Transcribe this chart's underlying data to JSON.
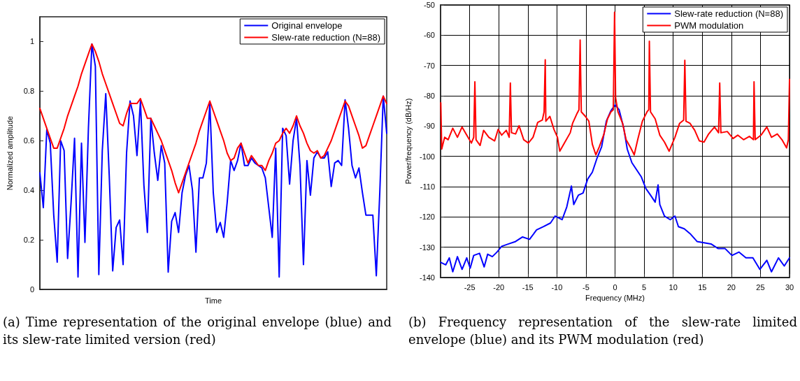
{
  "chart_data": [
    {
      "type": "line",
      "xlabel": "Time",
      "ylabel": "Normalized amplitude",
      "categories": [
        null,
        null,
        null,
        null,
        null,
        null,
        null,
        null,
        null,
        null,
        null,
        null,
        null,
        null,
        null,
        null,
        null,
        null,
        null,
        null,
        null,
        null,
        null,
        null,
        null,
        null,
        null,
        null,
        null,
        null,
        null,
        null,
        null,
        null,
        null,
        null,
        null,
        null,
        null,
        null,
        null,
        null,
        null,
        null,
        null,
        null,
        null,
        null,
        null,
        null,
        null,
        null,
        null,
        null,
        null,
        null,
        null,
        null,
        null,
        null,
        null,
        null,
        null,
        null,
        null,
        null,
        null,
        null,
        null,
        null,
        null,
        null,
        null,
        null,
        null,
        null,
        null,
        null,
        null,
        null,
        null,
        null,
        null,
        null,
        null,
        null,
        null,
        null,
        null,
        null,
        null,
        null,
        null,
        null,
        null,
        null,
        null,
        null,
        null,
        null,
        null
      ],
      "ylim": [
        0,
        1.1
      ],
      "yticks": [
        0,
        0.2,
        0.4,
        0.6,
        0.8,
        1
      ],
      "tick_labels": "y",
      "grid": false,
      "legend": "top right",
      "marker": "none",
      "line_style": "solid",
      "annotations": [
        "(a) Time representation of the original envelope (blue) and its slew-rate limited version (red)"
      ],
      "series": [
        {
          "name": "Original envelope",
          "color": "#0000ff",
          "values": [
            0.47,
            0.33,
            0.645,
            0.59,
            0.3,
            0.11,
            0.6,
            0.56,
            0.125,
            0.35,
            0.61,
            0.05,
            0.59,
            0.19,
            0.65,
            0.99,
            0.9,
            0.06,
            0.56,
            0.79,
            0.46,
            0.075,
            0.25,
            0.28,
            0.1,
            0.55,
            0.76,
            0.7,
            0.54,
            0.76,
            0.42,
            0.23,
            0.69,
            0.55,
            0.44,
            0.58,
            0.51,
            0.07,
            0.275,
            0.31,
            0.23,
            0.39,
            0.46,
            0.5,
            0.4,
            0.15,
            0.45,
            0.45,
            0.51,
            0.75,
            0.39,
            0.23,
            0.27,
            0.21,
            0.35,
            0.52,
            0.48,
            0.52,
            0.59,
            0.5,
            0.5,
            0.53,
            0.51,
            0.5,
            0.49,
            0.45,
            0.33,
            0.21,
            0.57,
            0.05,
            0.65,
            0.62,
            0.425,
            0.6,
            0.69,
            0.5,
            0.1,
            0.52,
            0.38,
            0.53,
            0.555,
            0.53,
            0.53,
            0.555,
            0.415,
            0.51,
            0.52,
            0.5,
            0.765,
            0.65,
            0.5,
            0.45,
            0.49,
            0.39,
            0.3,
            0.3,
            0.3,
            0.055,
            0.39,
            0.78,
            0.63
          ]
        },
        {
          "name": "Slew-rate reduction (N=88)",
          "color": "#ff0000",
          "values": [
            0.73,
            0.69,
            0.65,
            0.61,
            0.57,
            0.57,
            0.61,
            0.65,
            0.7,
            0.74,
            0.78,
            0.82,
            0.87,
            0.91,
            0.95,
            0.99,
            0.96,
            0.92,
            0.87,
            0.83,
            0.79,
            0.75,
            0.71,
            0.67,
            0.66,
            0.71,
            0.75,
            0.75,
            0.75,
            0.77,
            0.73,
            0.69,
            0.69,
            0.66,
            0.63,
            0.6,
            0.56,
            0.52,
            0.48,
            0.43,
            0.39,
            0.43,
            0.47,
            0.51,
            0.55,
            0.59,
            0.64,
            0.68,
            0.72,
            0.76,
            0.72,
            0.68,
            0.64,
            0.6,
            0.55,
            0.52,
            0.53,
            0.57,
            0.59,
            0.55,
            0.51,
            0.54,
            0.52,
            0.5,
            0.5,
            0.48,
            0.52,
            0.55,
            0.59,
            0.6,
            0.63,
            0.65,
            0.63,
            0.66,
            0.7,
            0.66,
            0.63,
            0.59,
            0.56,
            0.55,
            0.56,
            0.53,
            0.54,
            0.57,
            0.6,
            0.64,
            0.68,
            0.72,
            0.76,
            0.74,
            0.7,
            0.66,
            0.62,
            0.57,
            0.58,
            0.62,
            0.66,
            0.7,
            0.74,
            0.78,
            0.75
          ]
        }
      ]
    },
    {
      "type": "line",
      "xlabel": "Frequency (MHz)",
      "ylabel": "Power/frequency (dB/Hz)",
      "xlim": [
        -30,
        30
      ],
      "xticks": [
        -25,
        -20,
        -15,
        -10,
        -5,
        0,
        5,
        10,
        15,
        20,
        25,
        30
      ],
      "ylim": [
        -140,
        -50
      ],
      "yticks": [
        -140,
        -130,
        -120,
        -110,
        -100,
        -90,
        -80,
        -70,
        -60,
        -50
      ],
      "grid": true,
      "legend": "top right",
      "marker": "none",
      "line_style": "solid",
      "annotations": [
        "(b) Frequency representation of the slew-rate limited envelope (blue) and its PWM modulation (red)"
      ],
      "series": [
        {
          "name": "Slew-rate reduction (N=88)",
          "color": "#0000ff",
          "x": [
            -29.96,
            -29.1,
            -28.5,
            -27.9,
            -27.1,
            -26.3,
            -25.5,
            -24.9,
            -24.3,
            -23.3,
            -22.5,
            -21.9,
            -21.1,
            -20.3,
            -19.5,
            -18.3,
            -17.1,
            -15.9,
            -14.7,
            -13.5,
            -12.3,
            -11.1,
            -10.3,
            -9.1,
            -8.3,
            -7.5,
            -7.1,
            -6.3,
            -5.5,
            -4.7,
            -3.9,
            -3.1,
            -2.3,
            -1.5,
            -0.7,
            0,
            0.7,
            1.5,
            2.1,
            2.9,
            3.7,
            4.5,
            5.3,
            6.1,
            6.9,
            7.4,
            7.7,
            8.5,
            9.5,
            10.3,
            10.9,
            11.9,
            12.9,
            14.1,
            15.3,
            16.5,
            17.7,
            18.9,
            20.1,
            21.3,
            22.5,
            23.7,
            24.9,
            26.1,
            26.9,
            28.1,
            29.1,
            30
          ],
          "values": [
            -135,
            -135.8,
            -133.5,
            -138.1,
            -133.1,
            -137.3,
            -133.5,
            -136.9,
            -132.7,
            -132,
            -136.5,
            -132.3,
            -133.1,
            -131.6,
            -129.7,
            -128.9,
            -128.1,
            -126.6,
            -127.4,
            -124.3,
            -123.2,
            -122,
            -119.7,
            -120.9,
            -116.7,
            -109.8,
            -115.9,
            -112.8,
            -112.1,
            -107.5,
            -105.2,
            -100.6,
            -96.8,
            -88.4,
            -84.9,
            -83,
            -84.6,
            -90.7,
            -97.6,
            -102.1,
            -104.4,
            -106.7,
            -110.6,
            -112.8,
            -115.1,
            -109.4,
            -115.9,
            -119.7,
            -120.9,
            -119.7,
            -123.2,
            -123.9,
            -125.5,
            -128.1,
            -128.5,
            -128.9,
            -130.4,
            -130.4,
            -132.7,
            -131.6,
            -133.5,
            -133.5,
            -137.3,
            -134.3,
            -138.1,
            -133.5,
            -136.2,
            -133.5
          ]
        },
        {
          "name": "PWM modulation",
          "color": "#ff0000",
          "x": [
            -29.96,
            -29.8,
            -29.3,
            -28.7,
            -27.9,
            -27.1,
            -26.3,
            -25.5,
            -24.7,
            -24.3,
            -24.1,
            -23.9,
            -23.2,
            -22.6,
            -21.7,
            -20.7,
            -20.1,
            -19.5,
            -18.7,
            -18.2,
            -18,
            -17.8,
            -17.1,
            -16.5,
            -15.7,
            -14.9,
            -14.1,
            -13.3,
            -12.5,
            -12.2,
            -12,
            -11.9,
            -11.2,
            -10.5,
            -9.9,
            -9.5,
            -8.7,
            -7.7,
            -7.3,
            -6.5,
            -6.2,
            -6,
            -5.8,
            -5.1,
            -4.5,
            -3.9,
            -3.3,
            -2.7,
            -1.9,
            -1.3,
            -0.7,
            -0.3,
            -0.08,
            0.1,
            0.5,
            1.3,
            1.9,
            2.7,
            3.3,
            3.9,
            4.7,
            5.5,
            5.8,
            5.9,
            6.1,
            6.9,
            7.7,
            8.5,
            9.3,
            10.3,
            11.1,
            11.8,
            12,
            12.2,
            12.9,
            13.7,
            14.5,
            15.3,
            16.1,
            17.1,
            17.8,
            18,
            18.2,
            19.3,
            20.3,
            21.1,
            22.1,
            23.1,
            23.8,
            23.9,
            24.1,
            25.1,
            26.1,
            26.9,
            27.9,
            28.7,
            29.5,
            29.8,
            30
          ],
          "values": [
            -82.3,
            -97.6,
            -93.7,
            -94.5,
            -90.7,
            -93.7,
            -90.3,
            -93,
            -95.6,
            -93.7,
            -75.4,
            -94.5,
            -96.4,
            -91.4,
            -93.7,
            -94.9,
            -91.1,
            -93,
            -91.4,
            -93.7,
            -75.8,
            -92.2,
            -92.6,
            -89.9,
            -94.5,
            -95.6,
            -93.7,
            -88.8,
            -88,
            -85.3,
            -68.1,
            -88.4,
            -86.8,
            -91.1,
            -93.7,
            -98.3,
            -95.6,
            -92.2,
            -89.1,
            -85.7,
            -84.6,
            -61.6,
            -85.3,
            -86.8,
            -88.4,
            -96,
            -99.5,
            -96.8,
            -92.6,
            -87.6,
            -85.3,
            -84.6,
            -52.4,
            -80.7,
            -85.3,
            -89.1,
            -94.5,
            -97.2,
            -99.5,
            -94.5,
            -88.4,
            -85.3,
            -84.6,
            -62,
            -85.3,
            -87.6,
            -93,
            -95.3,
            -98.3,
            -93.7,
            -89.1,
            -88,
            -68.3,
            -88.4,
            -89.1,
            -91.4,
            -94.9,
            -95.3,
            -92.6,
            -90.3,
            -92.2,
            -75.8,
            -92.2,
            -91.8,
            -94.1,
            -93,
            -94.5,
            -93.4,
            -94.5,
            -75.4,
            -94.5,
            -93,
            -90.3,
            -93.7,
            -92.6,
            -94.5,
            -97.2,
            -94.5,
            -74.6
          ]
        }
      ]
    }
  ]
}
